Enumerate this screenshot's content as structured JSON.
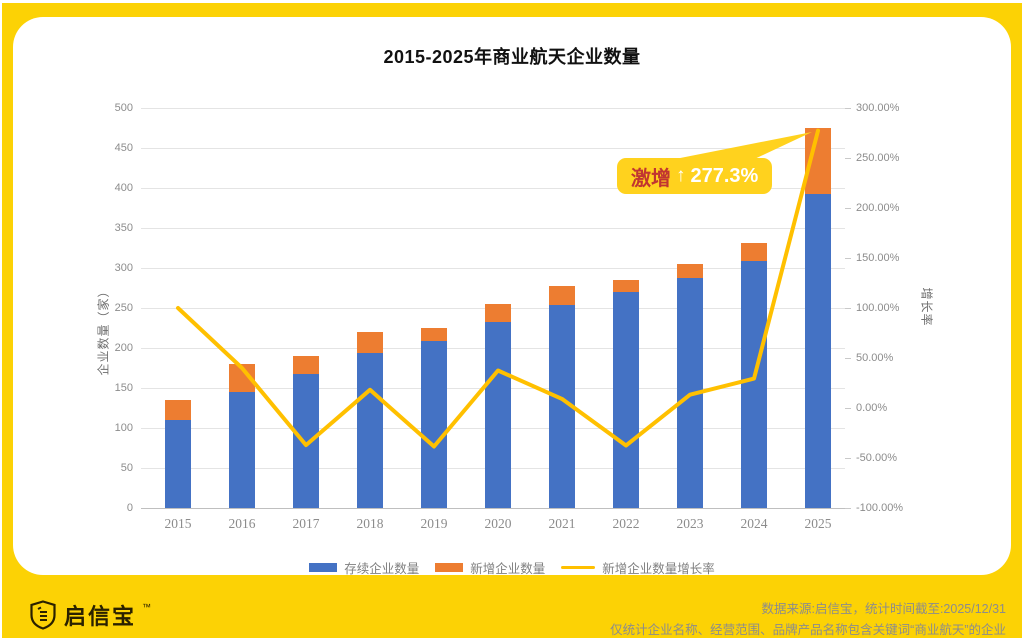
{
  "title": "2015-2025年商业航天企业数量",
  "chart_data": {
    "type": "bar",
    "stacked": true,
    "grid": true,
    "legend_position": "bottom",
    "title": "2015-2025年商业航天企业数量",
    "categories": [
      "2015",
      "2016",
      "2017",
      "2018",
      "2019",
      "2020",
      "2021",
      "2022",
      "2023",
      "2024",
      "2025"
    ],
    "series": [
      {
        "name": "存续企业数量",
        "type": "bar",
        "color": "#4472C4",
        "values": [
          110,
          145,
          168,
          194,
          209,
          233,
          254,
          270,
          288,
          309,
          392
        ]
      },
      {
        "name": "新增企业数量",
        "type": "bar",
        "color": "#ED7D31",
        "values": [
          25,
          35,
          22,
          26,
          16,
          22,
          24,
          15,
          17,
          22,
          83
        ]
      },
      {
        "name": "新增企业数量增长率",
        "type": "line",
        "color": "#FFC000",
        "axis": "right",
        "values_pct": [
          100.0,
          40.0,
          -37.1,
          18.2,
          -38.5,
          37.5,
          9.1,
          -37.5,
          13.3,
          29.4,
          277.3
        ]
      }
    ],
    "y_left": {
      "label": "企业数量（家）",
      "min": 0,
      "max": 500,
      "tick_step": 50
    },
    "y_right": {
      "label": "增长率",
      "min": -100,
      "max": 300,
      "tick_step": 50,
      "format": "percent2"
    }
  },
  "callout": {
    "label": "激增",
    "arrow": "↑",
    "value": "277.3%"
  },
  "legend": {
    "items": [
      {
        "label": "存续企业数量",
        "color": "#4472C4"
      },
      {
        "label": "新增企业数量",
        "color": "#ED7D31"
      },
      {
        "label": "新增企业数量增长率",
        "color": "#FFC000"
      }
    ]
  },
  "footer": {
    "brand": "启信宝",
    "trademark": "™",
    "source_line": "数据来源:启信宝，统计时间截至:2025/12/31",
    "note_line": "仅统计企业名称、经营范围、品牌产品名称包含关键词“商业航天”的企业"
  },
  "colors": {
    "frame_yellow": "#FCD205",
    "callout_yellow": "#FFD21E",
    "bar_blue": "#4472C4",
    "bar_orange": "#ED7D31",
    "line_yellow": "#FFC000",
    "callout_red": "#C13531"
  }
}
